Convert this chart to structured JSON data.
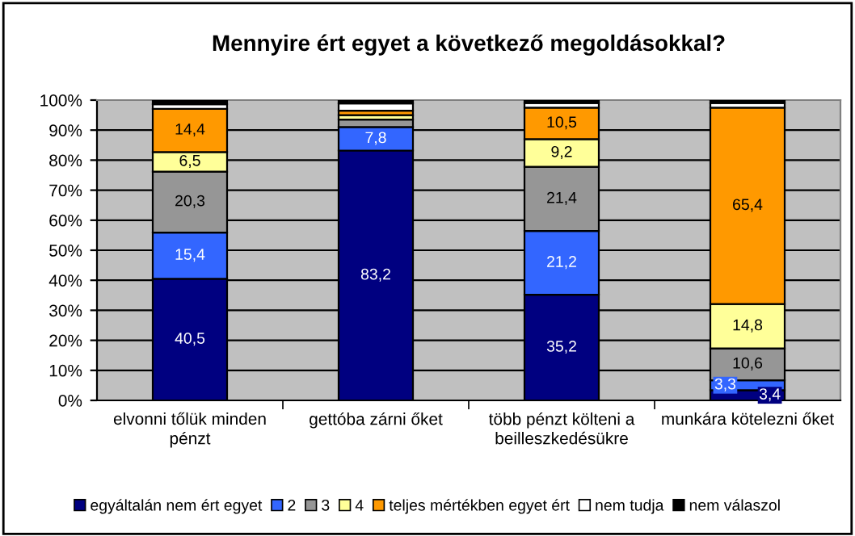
{
  "chart_data": {
    "type": "bar",
    "stacked": true,
    "title": "Mennyire ért egyet a következő megoldásokkal?",
    "categories": [
      "elvonni tőlük minden pénzt",
      "gettóba zárni őket",
      "több pénzt költeni a beilleszkedésükre",
      "munkára kötelezni őket"
    ],
    "series": [
      {
        "name": "egyáltalán nem ért egyet",
        "color": "#000080",
        "values": [
          40.5,
          83.2,
          35.2,
          3.4
        ],
        "value_labels": [
          "40,5",
          "83,2",
          "35,2",
          "3,4"
        ]
      },
      {
        "name": "2",
        "color": "#3366ff",
        "values": [
          15.4,
          7.8,
          21.2,
          3.3
        ],
        "value_labels": [
          "15,4",
          "7,8",
          "21,2",
          "3,3"
        ]
      },
      {
        "name": "3",
        "color": "#969696",
        "values": [
          20.3,
          2.5,
          21.4,
          10.6
        ],
        "value_labels": [
          "20,3",
          null,
          "21,4",
          "10,6"
        ]
      },
      {
        "name": "4",
        "color": "#ffff99",
        "values": [
          6.5,
          1.5,
          9.2,
          14.8
        ],
        "value_labels": [
          "6,5",
          null,
          "9,2",
          "14,8"
        ]
      },
      {
        "name": "teljes mértékben egyet ért",
        "color": "#ff9900",
        "values": [
          14.4,
          1.5,
          10.5,
          65.4
        ],
        "value_labels": [
          "14,4",
          null,
          "10,5",
          "65,4"
        ]
      },
      {
        "name": "nem tudja",
        "color": "#ffffff",
        "values": [
          1.5,
          2.4,
          1.5,
          1.5
        ]
      },
      {
        "name": "nem válaszol",
        "color": "#000000",
        "values": [
          1.4,
          1.1,
          1.0,
          1.0
        ]
      }
    ],
    "ylim": [
      0,
      100
    ],
    "yticks": [
      {
        "value": 0,
        "label": "0%"
      },
      {
        "value": 10,
        "label": "10%"
      },
      {
        "value": 20,
        "label": "20%"
      },
      {
        "value": 30,
        "label": "30%"
      },
      {
        "value": 40,
        "label": "40%"
      },
      {
        "value": 50,
        "label": "50%"
      },
      {
        "value": 60,
        "label": "60%"
      },
      {
        "value": 70,
        "label": "70%"
      },
      {
        "value": 80,
        "label": "80%"
      },
      {
        "value": 90,
        "label": "90%"
      },
      {
        "value": 100,
        "label": "100%"
      }
    ],
    "grid": "y",
    "legend": "bottom"
  }
}
